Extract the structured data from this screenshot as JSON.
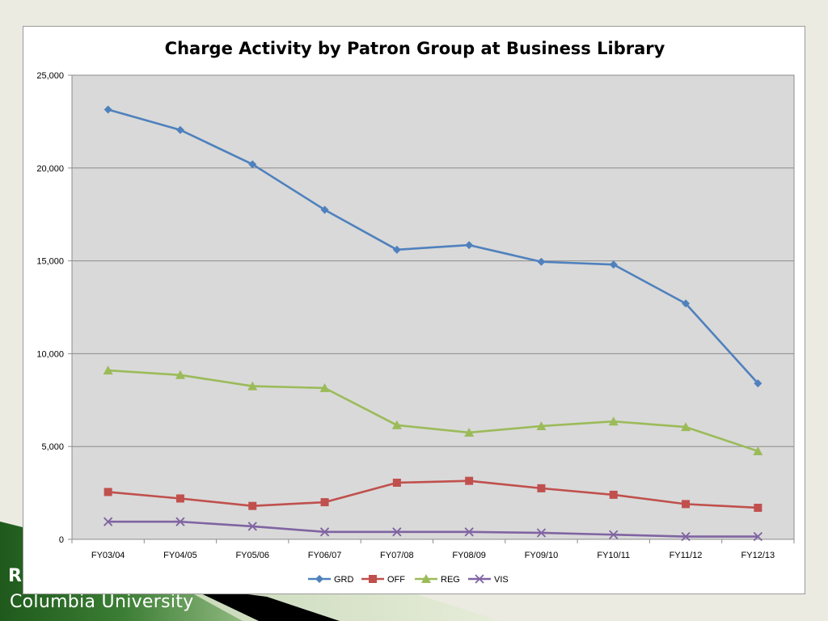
{
  "footer": {
    "partial_text": "R",
    "text": "Columbia University"
  },
  "colors": {
    "GRD": "#4f81bd",
    "OFF": "#c0504d",
    "REG": "#9bbb59",
    "VIS": "#8064a2"
  },
  "chart_data": {
    "type": "line",
    "title": "Charge Activity by Patron Group at Business Library",
    "xlabel": "",
    "ylabel": "",
    "categories": [
      "FY03/04",
      "FY04/05",
      "FY05/06",
      "FY06/07",
      "FY07/08",
      "FY08/09",
      "FY09/10",
      "FY10/11",
      "FY11/12",
      "FY12/13"
    ],
    "ylim": [
      0,
      25000
    ],
    "y_ticks": [
      0,
      5000,
      10000,
      15000,
      20000,
      25000
    ],
    "y_tick_labels": [
      "0",
      "5,000",
      "10,000",
      "15,000",
      "20,000",
      "25,000"
    ],
    "grid": true,
    "legend": "bottom",
    "series": [
      {
        "name": "GRD",
        "marker": "diamond",
        "values": [
          23150,
          22050,
          20200,
          17750,
          15600,
          15850,
          14950,
          14800,
          12700,
          8400
        ]
      },
      {
        "name": "OFF",
        "marker": "square",
        "values": [
          2550,
          2200,
          1800,
          2000,
          3050,
          3150,
          2750,
          2400,
          1900,
          1700
        ]
      },
      {
        "name": "REG",
        "marker": "triangle",
        "values": [
          9100,
          8850,
          8250,
          8150,
          6150,
          5750,
          6100,
          6350,
          6050,
          4750
        ]
      },
      {
        "name": "VIS",
        "marker": "x",
        "values": [
          950,
          950,
          700,
          400,
          400,
          400,
          350,
          250,
          150,
          150
        ]
      }
    ]
  }
}
